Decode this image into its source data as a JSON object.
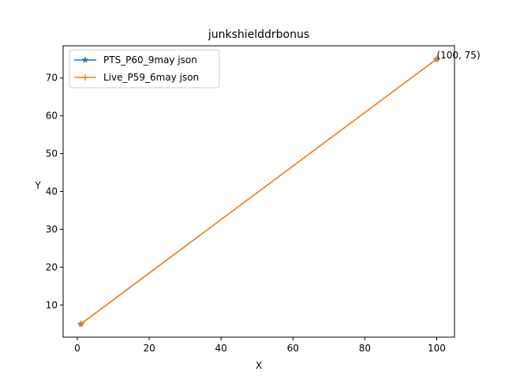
{
  "chart_data": {
    "type": "line",
    "title": "junkshielddrbonus",
    "xlabel": "X",
    "ylabel": "Y",
    "xlim": [
      -3.95,
      104.95
    ],
    "ylim": [
      1.5,
      78.5
    ],
    "xticks": [
      0,
      20,
      40,
      60,
      80,
      100
    ],
    "yticks": [
      10,
      20,
      30,
      40,
      50,
      60,
      70
    ],
    "grid": false,
    "legend_position": "upper-left",
    "series": [
      {
        "name": "PTS_P60_9may json",
        "x": [
          1,
          100
        ],
        "y": [
          5,
          75
        ],
        "color": "#1f77b4",
        "marker": "star"
      },
      {
        "name": "Live_P59_6may json",
        "x": [
          1,
          100
        ],
        "y": [
          5,
          75
        ],
        "color": "#ff7f0e",
        "marker": "plus"
      }
    ],
    "annotations": [
      {
        "text": "(100, 75)",
        "x": 100,
        "y": 75
      }
    ]
  }
}
